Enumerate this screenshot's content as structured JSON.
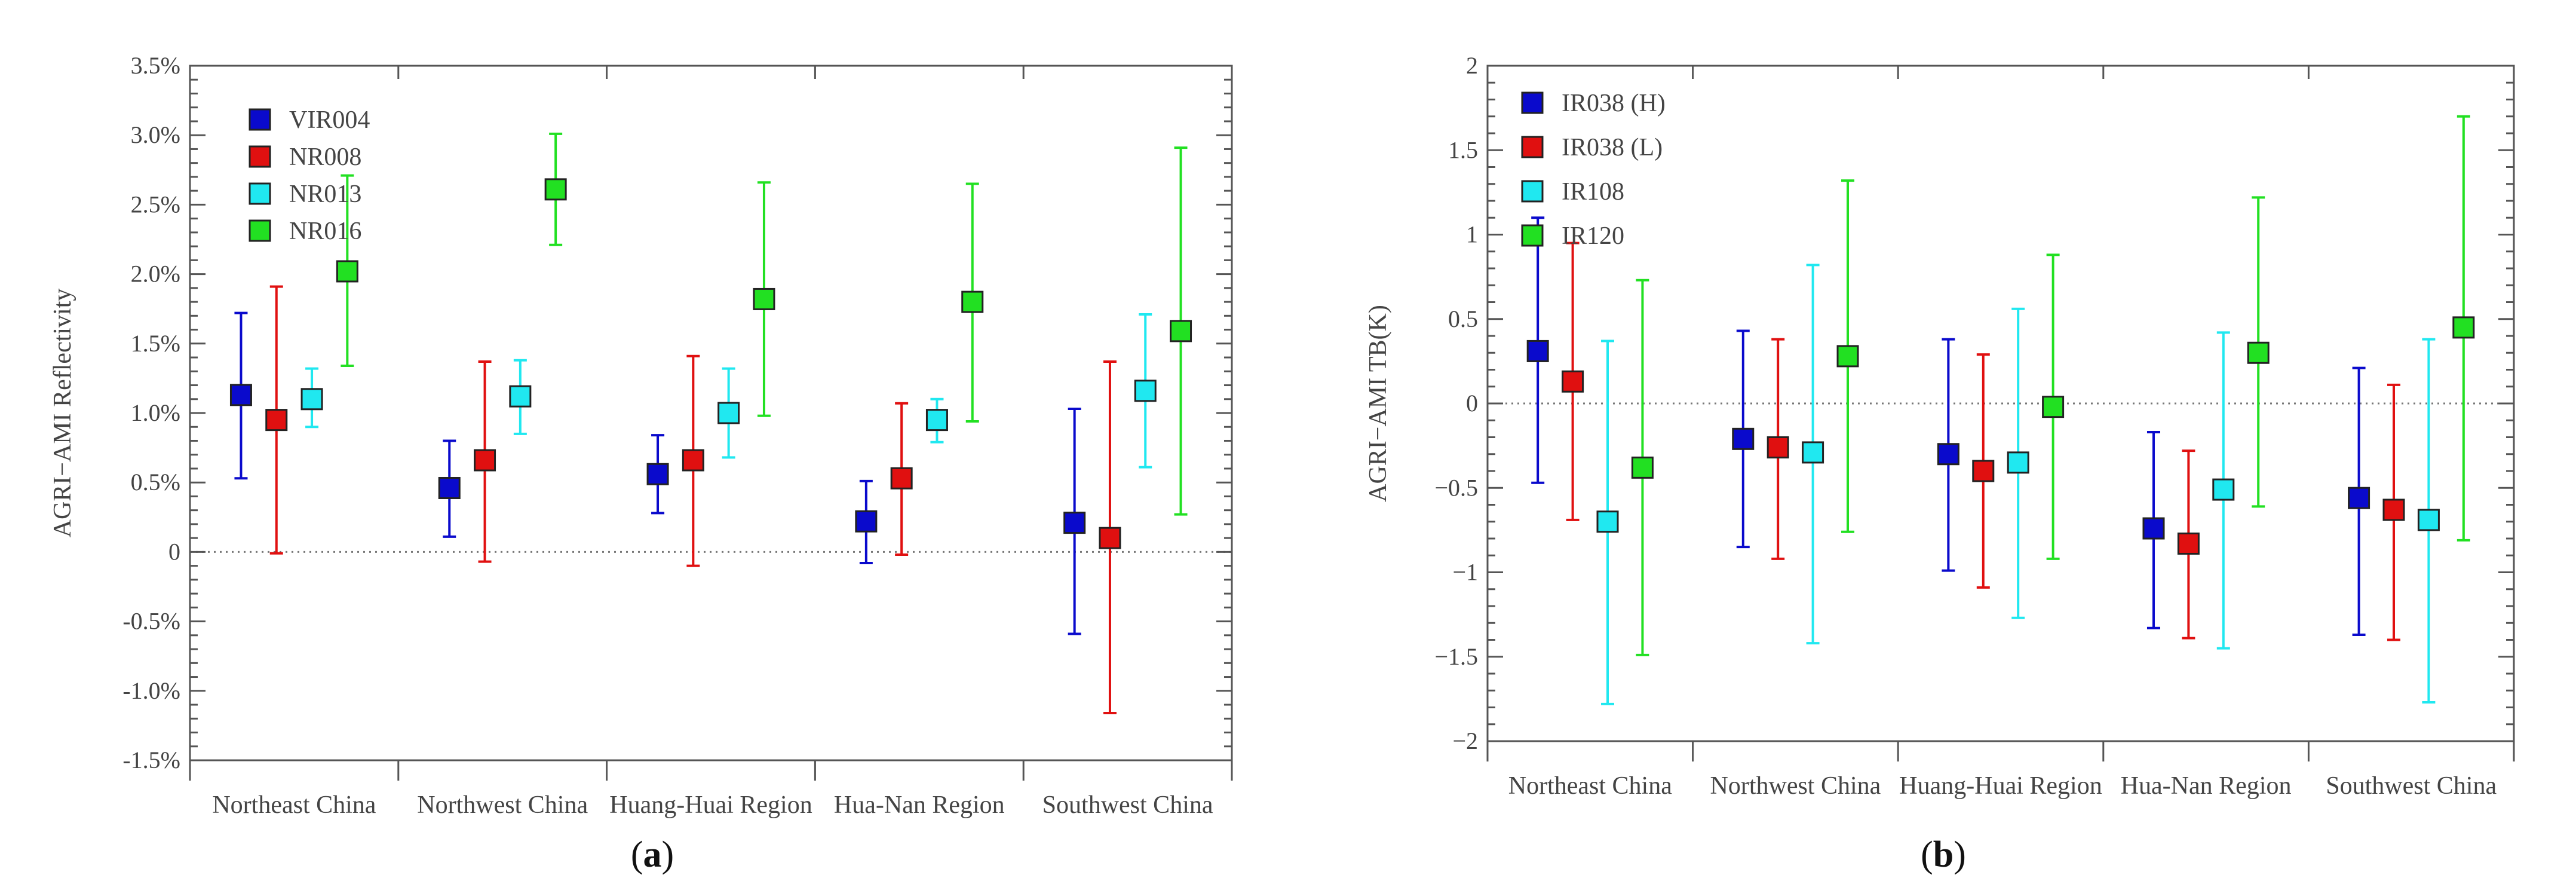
{
  "chart_data": [
    {
      "type": "errorbar-scatter",
      "panel_label": "(a)",
      "panel_label_parts": {
        "open": "(",
        "letter": "a",
        "close": ")"
      },
      "ylabel": "AGRI−AMI Reflectivity",
      "xlabel": "",
      "ylim": [
        -1.5,
        3.5
      ],
      "yticks": [
        -1.5,
        -1.0,
        -0.5,
        0,
        0.5,
        1.0,
        1.5,
        2.0,
        2.5,
        3.0,
        3.5
      ],
      "ytick_labels": [
        "-1.5%",
        "-1.0%",
        "-0.5%",
        "0",
        "0.5%",
        "1.0%",
        "1.5%",
        "2.0%",
        "2.5%",
        "3.0%",
        "3.5%"
      ],
      "categories": [
        "Northeast China",
        "Northwest China",
        "Huang-Huai Region",
        "Hua-Nan Region",
        "Southwest China"
      ],
      "legend_position": "top-left",
      "series": [
        {
          "name": "VIR004",
          "color": "#0a0acc",
          "values": [
            1.13,
            0.46,
            0.56,
            0.22,
            0.21
          ],
          "lower": [
            0.53,
            0.11,
            0.28,
            -0.08,
            -0.59
          ],
          "upper": [
            1.72,
            0.8,
            0.84,
            0.51,
            1.03
          ]
        },
        {
          "name": "NR008",
          "color": "#e01010",
          "values": [
            0.95,
            0.66,
            0.66,
            0.53,
            0.1
          ],
          "lower": [
            -0.01,
            -0.07,
            -0.1,
            -0.02,
            -1.16
          ],
          "upper": [
            1.91,
            1.37,
            1.41,
            1.07,
            1.37
          ]
        },
        {
          "name": "NR013",
          "color": "#20e8f0",
          "values": [
            1.1,
            1.12,
            1.0,
            0.95,
            1.16
          ],
          "lower": [
            0.9,
            0.85,
            0.68,
            0.79,
            0.61
          ],
          "upper": [
            1.32,
            1.38,
            1.32,
            1.1,
            1.71
          ]
        },
        {
          "name": "NR016",
          "color": "#22e022",
          "values": [
            2.02,
            2.61,
            1.82,
            1.8,
            1.59
          ],
          "lower": [
            1.34,
            2.21,
            0.98,
            0.94,
            0.27
          ],
          "upper": [
            2.71,
            3.01,
            2.66,
            2.65,
            2.91
          ]
        }
      ]
    },
    {
      "type": "errorbar-scatter",
      "panel_label": "(b)",
      "panel_label_parts": {
        "open": "(",
        "letter": "b",
        "close": ")"
      },
      "ylabel": "AGRI−AMI TB(K)",
      "xlabel": "",
      "ylim": [
        -2,
        2
      ],
      "yticks": [
        -2,
        -1.5,
        -1,
        -0.5,
        0,
        0.5,
        1,
        1.5,
        2
      ],
      "ytick_labels": [
        "−2",
        "−1.5",
        "−1",
        "−0.5",
        "0",
        "0.5",
        "1",
        "1.5",
        "2"
      ],
      "categories": [
        "Northeast China",
        "Northwest China",
        "Huang-Huai Region",
        "Hua-Nan Region",
        "Southwest China"
      ],
      "legend_position": "top-left",
      "series": [
        {
          "name": "IR038 (H)",
          "color": "#0a0acc",
          "values": [
            0.31,
            -0.21,
            -0.3,
            -0.74,
            -0.56
          ],
          "lower": [
            -0.47,
            -0.85,
            -0.99,
            -1.33,
            -1.37
          ],
          "upper": [
            1.1,
            0.43,
            0.38,
            -0.17,
            0.21
          ]
        },
        {
          "name": "IR038 (L)",
          "color": "#e01010",
          "values": [
            0.13,
            -0.26,
            -0.4,
            -0.83,
            -0.63
          ],
          "lower": [
            -0.69,
            -0.92,
            -1.09,
            -1.39,
            -1.4
          ],
          "upper": [
            0.95,
            0.38,
            0.29,
            -0.28,
            0.11
          ]
        },
        {
          "name": "IR108",
          "color": "#20e8f0",
          "values": [
            -0.7,
            -0.29,
            -0.35,
            -0.51,
            -0.69
          ],
          "lower": [
            -1.78,
            -1.42,
            -1.27,
            -1.45,
            -1.77
          ],
          "upper": [
            0.37,
            0.82,
            0.56,
            0.42,
            0.38
          ]
        },
        {
          "name": "IR120",
          "color": "#22e022",
          "values": [
            -0.38,
            0.28,
            -0.02,
            0.3,
            0.45
          ],
          "lower": [
            -1.49,
            -0.76,
            -0.92,
            -0.61,
            -0.81
          ],
          "upper": [
            0.73,
            1.32,
            0.88,
            1.22,
            1.7
          ]
        }
      ]
    }
  ]
}
